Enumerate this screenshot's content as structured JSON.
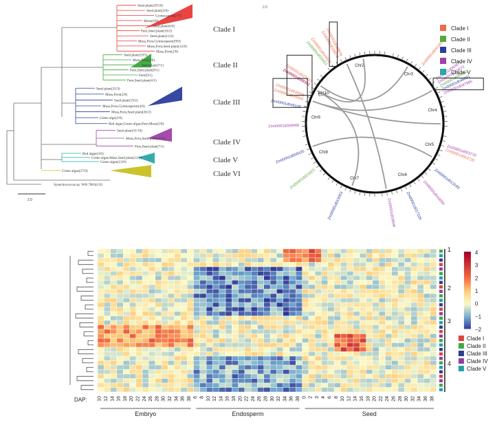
{
  "tree": {
    "clades": [
      {
        "label": "Clade I",
        "color": "#e83a3a",
        "leaves": [
          "Seed plant(29/10)",
          "Seed plant(2/0)",
          "Gymnosperm(7/1)",
          "Moss(0/0)",
          "Seed plant(6/0)",
          "Fern,Seed plant(10/2)",
          "Seed plant(12/4)",
          "Moss,Fern,Gymnosperm(9/0)",
          "Moss,Fern,Seed plant(12/0)",
          "Moss,Fern(2/0)"
        ]
      },
      {
        "label": "Clade II",
        "color": "#3aa83a",
        "leaves": [
          "Seed plant(19/5)",
          "Moss,Fern(2/0)",
          "Seed plant(7/1)",
          "Fern,Seed plant(9/1)",
          "Fern(9/1)",
          "Fern,Seed plant(4/1)"
        ]
      },
      {
        "label": "Clade III",
        "color": "#2c3e9e",
        "leaves": [
          "Seed plant(35/3)",
          "Moss,Fern(2/0)",
          "Seed plant(19/2)",
          "Moss,Fern,Gymnosperm(4/0)",
          "Moss,Fern,Seed plant(26/2)",
          "Green alga(2/0)",
          "Red algae,Green algae,Fern,Moss(5/0)"
        ]
      },
      {
        "label": "Clade IV",
        "color": "#a040a8",
        "leaves": [
          "Seed plant(31/10)",
          "Moss,Fern,Seed plant(13/2)",
          "Fern,Seed plant(7/1)"
        ]
      },
      {
        "label": "Clade V",
        "color": "#2aa8a8",
        "leaves": [
          "Red algae(3/0)",
          "Green algae,Moss,Seed plant(11/1)",
          "Green algae(13/0)"
        ]
      },
      {
        "label": "Clade VI",
        "color": "#c8c020",
        "leaves": [
          "Green algae(27/0)"
        ]
      }
    ],
    "outgroup": "Synechococcus sp. WH 7803(1/0)",
    "scale": "2.0"
  },
  "circos": {
    "panel_scale": "2.0",
    "chromosomes": [
      "Chr1",
      "Chr2",
      "Chr3",
      "Chr4",
      "Chr5",
      "Chr6",
      "Chr7",
      "Chr8",
      "Chr9",
      "Chr10"
    ],
    "legend": [
      {
        "label": "Clade I",
        "color": "#ee6a4a"
      },
      {
        "label": "Clade II",
        "color": "#55a83a"
      },
      {
        "label": "Clade III",
        "color": "#2c3e9e"
      },
      {
        "label": "Clade IV",
        "color": "#a040a8"
      },
      {
        "label": "Clade V",
        "color": "#2aa8a8"
      }
    ],
    "genes": [
      {
        "id": "Zm00001d027311",
        "color": "#ee6a4a"
      },
      {
        "id": "Zm00001d027312",
        "color": "#ee6a4a"
      },
      {
        "id": "Zm00001d026004",
        "color": "#ee6a4a"
      },
      {
        "id": "Zm00001d026005",
        "color": "#ee6a4a"
      },
      {
        "id": "Zm00001d028878",
        "color": "#ee6a4a"
      },
      {
        "id": "Zm00001d028879",
        "color": "#ee6a4a"
      },
      {
        "id": "Zm00001d041181",
        "color": "#ee6a4a"
      },
      {
        "id": "Zm00001d043671",
        "color": "#a040a8"
      },
      {
        "id": "Zm00001d043672",
        "color": "#a040a8"
      },
      {
        "id": "Zm00001d042312",
        "color": "#55a83a"
      },
      {
        "id": "Zm00001d048081",
        "color": "#2c3e9e"
      },
      {
        "id": "Zm00001d047985",
        "color": "#a040a8"
      },
      {
        "id": "Zm00001d053719",
        "color": "#a040a8"
      },
      {
        "id": "Zm00001d053720",
        "color": "#ee6a4a"
      },
      {
        "id": "Zm00001d013189",
        "color": "#2c3e9e"
      },
      {
        "id": "Zm00001d016050",
        "color": "#a040a8"
      },
      {
        "id": "Zm00001d017226",
        "color": "#2c3e9e"
      },
      {
        "id": "Zm00001d038596",
        "color": "#a040a8"
      },
      {
        "id": "Zm00001d019053",
        "color": "#2c3e9e"
      },
      {
        "id": "Zm00001d021823",
        "color": "#55a83a"
      },
      {
        "id": "Zm00001d008425",
        "color": "#2c3e9e"
      },
      {
        "id": "Zm00001d009469",
        "color": "#a040a8"
      },
      {
        "id": "Zm00001d045146",
        "color": "#2c3e9e"
      },
      {
        "id": "Zm00001d008101",
        "color": "#a040a8"
      },
      {
        "id": "Zm00001d024821",
        "color": "#55a83a"
      },
      {
        "id": "Zm00001d024822",
        "color": "#ee6a4a"
      }
    ]
  },
  "heatmap": {
    "dap_label": "DAP:",
    "groups": [
      {
        "name": "Embryo",
        "days": [
          "10",
          "12",
          "14",
          "16",
          "18",
          "20",
          "22",
          "24",
          "26",
          "28",
          "30",
          "32",
          "34",
          "36",
          "38"
        ]
      },
      {
        "name": "Endosperm",
        "days": [
          "6",
          "8",
          "10",
          "12",
          "14",
          "16",
          "18",
          "20",
          "22",
          "24",
          "26",
          "28",
          "30",
          "32",
          "34",
          "36",
          "38"
        ]
      },
      {
        "name": "Seed",
        "days": [
          "0",
          "2",
          "3",
          "4",
          "6",
          "8",
          "10",
          "12",
          "14",
          "16",
          "18",
          "20",
          "22",
          "24",
          "26",
          "28",
          "30",
          "32",
          "34",
          "36",
          "38"
        ]
      }
    ],
    "scale_ticks": [
      "4",
      "3",
      "2",
      "1",
      "0",
      "−1",
      "−2"
    ],
    "row_groups": [
      "1",
      "2",
      "3",
      "4"
    ],
    "legend": [
      {
        "label": "Clade I",
        "color": "#e04040"
      },
      {
        "label": "Clade II",
        "color": "#40a840"
      },
      {
        "label": "Clade III",
        "color": "#2c3e8e"
      },
      {
        "label": "Clade IV",
        "color": "#9040a0"
      },
      {
        "label": "Clade V",
        "color": "#20a0b0"
      }
    ]
  }
}
